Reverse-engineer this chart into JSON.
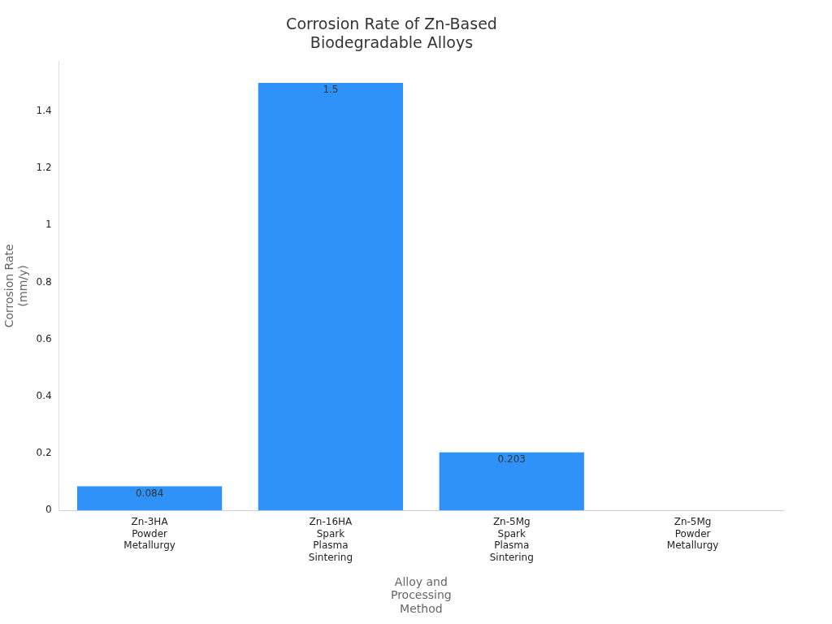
{
  "chart_data": {
    "type": "bar",
    "title": "Corrosion Rate of Zn-Based Biodegradable Alloys",
    "xlabel": "Alloy and Processing Method",
    "ylabel": "Corrosion Rate (mm/y)",
    "categories": [
      "Zn-3HA Powder Metallurgy",
      "Zn-16HA Spark Plasma Sintering",
      "Zn-5Mg Spark Plasma Sintering",
      "Zn-5Mg Powder Metallurgy"
    ],
    "values": [
      0.084,
      1.5,
      0.203,
      0
    ],
    "value_labels": [
      "0.084",
      "1.5",
      "0.203",
      null
    ],
    "color": "#2f92f8",
    "ylim": [
      0,
      1.575
    ],
    "yticks": [
      0,
      0.2,
      0.4,
      0.6,
      0.8,
      1,
      1.2,
      1.4
    ],
    "grid": false,
    "legend": false
  }
}
